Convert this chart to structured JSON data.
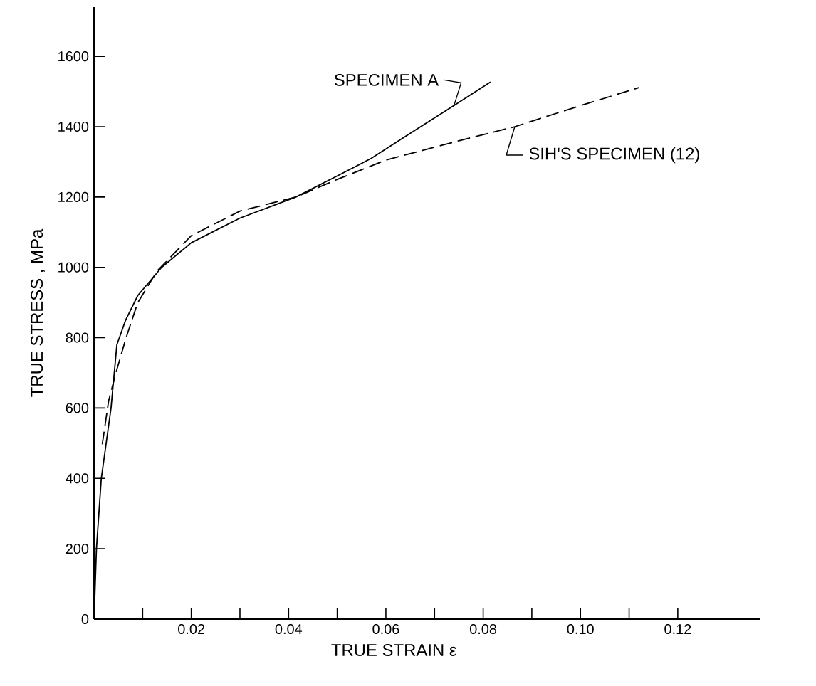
{
  "chart_data": {
    "type": "line",
    "xlabel": "TRUE   STRAIN   ε",
    "ylabel": "TRUE  STRESS , MPa",
    "xlim": [
      0,
      0.137
    ],
    "ylim": [
      0,
      1740
    ],
    "xticks": [
      {
        "value": 0.01,
        "label": null
      },
      {
        "value": 0.02,
        "label": "0.02"
      },
      {
        "value": 0.03,
        "label": null
      },
      {
        "value": 0.04,
        "label": "0.04"
      },
      {
        "value": 0.05,
        "label": null
      },
      {
        "value": 0.06,
        "label": "0.06"
      },
      {
        "value": 0.07,
        "label": null
      },
      {
        "value": 0.08,
        "label": "0.08"
      },
      {
        "value": 0.09,
        "label": null
      },
      {
        "value": 0.1,
        "label": "0.10"
      },
      {
        "value": 0.11,
        "label": null
      },
      {
        "value": 0.12,
        "label": "0.12"
      }
    ],
    "yticks": [
      0,
      200,
      400,
      600,
      800,
      1000,
      1200,
      1400,
      1600
    ],
    "grid": false,
    "series": [
      {
        "name": "SPECIMEN A",
        "color": "#000000",
        "line_style": "solid",
        "x": [
          0,
          0.0005,
          0.0015,
          0.0035,
          0.0047,
          0.0065,
          0.009,
          0.0139,
          0.02,
          0.03,
          0.0415,
          0.05,
          0.057,
          0.066,
          0.074,
          0.0815
        ],
        "values": [
          0,
          200,
          400,
          600,
          780,
          850,
          920,
          1000,
          1070,
          1140,
          1200,
          1260,
          1310,
          1390,
          1460,
          1527
        ]
      },
      {
        "name": "SIH'S SPECIMEN (12)",
        "color": "#000000",
        "line_style": "dashed",
        "x": [
          0.0017,
          0.003,
          0.0045,
          0.0066,
          0.009,
          0.013,
          0.02,
          0.03,
          0.0415,
          0.05,
          0.06,
          0.075,
          0.0865,
          0.1,
          0.112
        ],
        "values": [
          497,
          620,
          700,
          800,
          900,
          990,
          1090,
          1160,
          1200,
          1250,
          1305,
          1360,
          1400,
          1460,
          1511
        ]
      }
    ]
  }
}
